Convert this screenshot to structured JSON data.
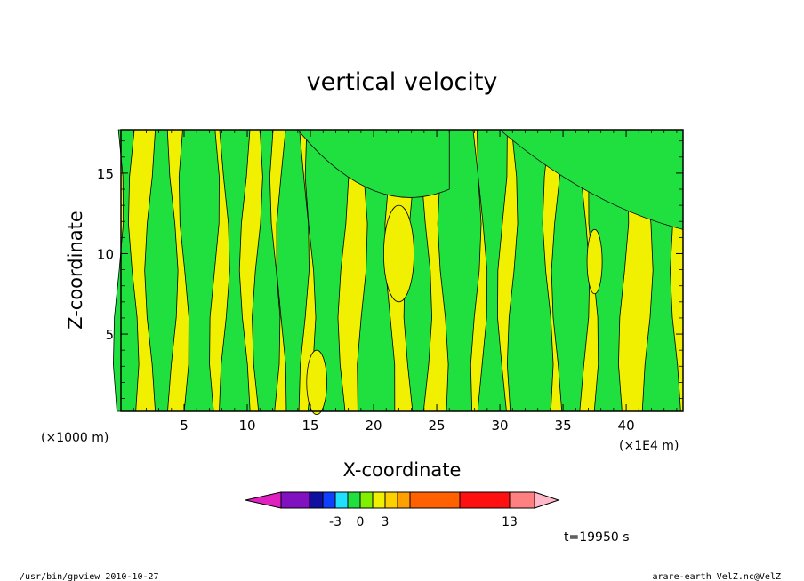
{
  "chart_data": {
    "type": "heatmap",
    "title": "vertical velocity",
    "xlabel": "X-coordinate",
    "ylabel": "Z-coordinate",
    "x_scale_note": "(×1000 m)",
    "x_unit_note": "(×1E4 m)",
    "xlim": [
      0,
      44.5
    ],
    "ylim": [
      0.2,
      17.7
    ],
    "x_ticks": [
      "5",
      "10",
      "15",
      "20",
      "25",
      "30",
      "35",
      "40"
    ],
    "y_ticks": [
      "5",
      "10",
      "15"
    ],
    "colorbar": {
      "colors": [
        "#e020c0",
        "#8010c0",
        "#1010a0",
        "#1040ff",
        "#20e0ff",
        "#20e040",
        "#80f000",
        "#f0f000",
        "#ffd000",
        "#ffa000",
        "#ff6000",
        "#ff1010",
        "#ff8080",
        "#ffb8c8"
      ],
      "tick_labels": [
        "-3",
        "0",
        "3",
        "13"
      ]
    },
    "contour_field": {
      "background_color": "#f0f000",
      "positive_color": "#f0f000",
      "negative_color": "#20e040"
    },
    "time_label": "t=19950 s"
  },
  "footer": {
    "left": "/usr/bin/gpview   2010-10-27",
    "right": "arare-earth_VelZ.nc@VelZ"
  }
}
